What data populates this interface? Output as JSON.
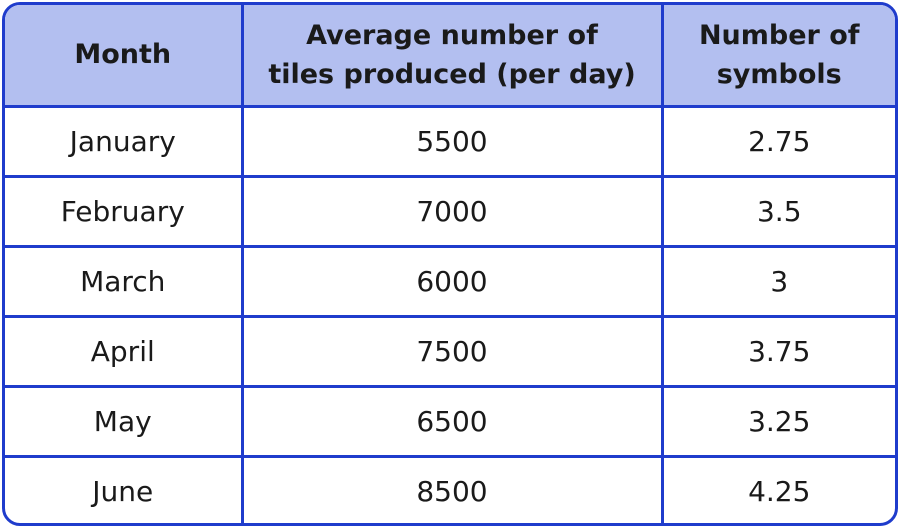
{
  "table": {
    "headers": [
      {
        "line1": "Month",
        "line2": ""
      },
      {
        "line1": "Average number of",
        "line2": "tiles produced (per day)"
      },
      {
        "line1": "Number of",
        "line2": "symbols"
      }
    ],
    "rows": [
      [
        "January",
        "5500",
        "2.75"
      ],
      [
        "February",
        "7000",
        "3.5"
      ],
      [
        "March",
        "6000",
        "3"
      ],
      [
        "April",
        "7500",
        "3.75"
      ],
      [
        "May",
        "6500",
        "3.25"
      ],
      [
        "June",
        "8500",
        "4.25"
      ]
    ]
  },
  "colors": {
    "border": "#1f3ccc",
    "header_background": "#b3bff0",
    "text": "#1a1a1a"
  }
}
